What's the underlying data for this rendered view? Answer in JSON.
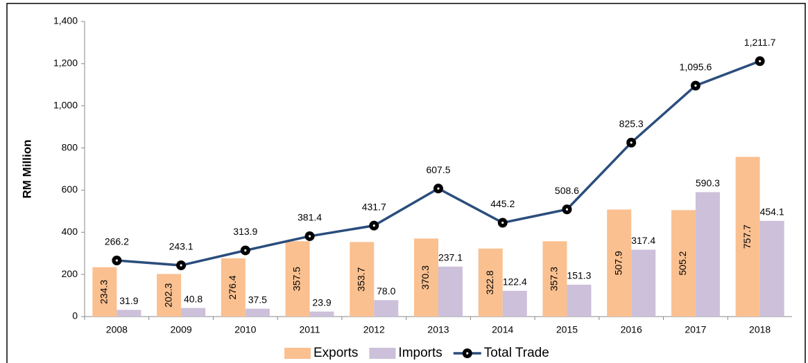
{
  "chart_data": {
    "type": "bar-line",
    "y_label": "RM Million",
    "categories": [
      "2008",
      "2009",
      "2010",
      "2011",
      "2012",
      "2013",
      "2014",
      "2015",
      "2016",
      "2017",
      "2018"
    ],
    "series": [
      {
        "name": "Exports",
        "type": "bar",
        "color": "#fac090",
        "values": [
          234.3,
          202.3,
          276.4,
          357.5,
          353.7,
          370.3,
          322.8,
          357.3,
          507.9,
          505.2,
          757.7
        ],
        "value_labels": [
          "234.3",
          "202.3",
          "276.4",
          "357.5",
          "353.7",
          "370.3",
          "322.8",
          "357.3",
          "507.9",
          "505.2",
          "757.7"
        ]
      },
      {
        "name": "Imports",
        "type": "bar",
        "color": "#ccc0da",
        "values": [
          31.9,
          40.8,
          37.5,
          23.9,
          78.0,
          237.1,
          122.4,
          151.3,
          317.4,
          590.3,
          454.1
        ],
        "value_labels": [
          "31.9",
          "40.8",
          "37.5",
          "23.9",
          "78.0",
          "237.1",
          "122.4",
          "151.3",
          "317.4",
          "590.3",
          "454.1"
        ]
      },
      {
        "name": "Total Trade",
        "type": "line",
        "color": "#2a4d7c",
        "values": [
          266.2,
          243.1,
          313.9,
          381.4,
          431.7,
          607.5,
          445.2,
          508.6,
          825.3,
          1095.6,
          1211.7
        ],
        "value_labels": [
          "266.2",
          "243.1",
          "313.9",
          "381.4",
          "431.7",
          "607.5",
          "445.2",
          "508.6",
          "825.3",
          "1,095.6",
          "1,211.7"
        ]
      }
    ],
    "ylim": [
      0,
      1400
    ],
    "yticks": [
      0,
      200,
      400,
      600,
      800,
      {
        "value": 1000,
        "label": "1,000"
      },
      {
        "value": 1200,
        "label": "1,200"
      },
      {
        "value": 1400,
        "label": "1,400"
      }
    ],
    "legend": "bottom"
  }
}
